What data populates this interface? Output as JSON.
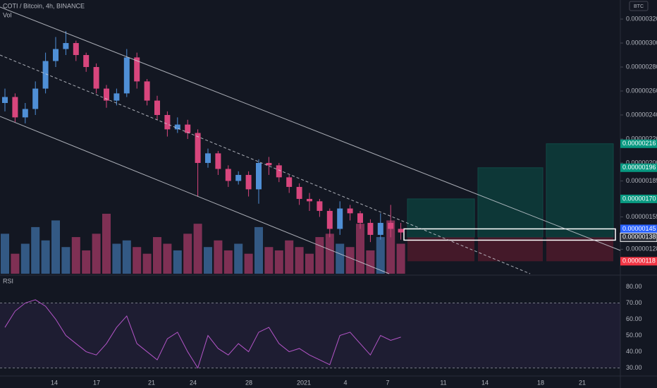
{
  "header": {
    "symbol": "COTI / Bitcoin, 4h, BINANCE",
    "volume_label": "Vol",
    "currency": "BTC",
    "rsi_label": "RSI"
  },
  "chart_data": {
    "type": "candlestick",
    "open": [
      2.5e-06,
      2.55e-06,
      2.38e-06,
      2.45e-06,
      2.62e-06,
      2.85e-06,
      2.95e-06,
      3e-06,
      2.9e-06,
      2.8e-06,
      2.62e-06,
      2.52e-06,
      2.58e-06,
      2.88e-06,
      2.68e-06,
      2.52e-06,
      2.4e-06,
      2.28e-06,
      2.32e-06,
      2.25e-06,
      2e-06,
      2.08e-06,
      1.95e-06,
      1.85e-06,
      1.9e-06,
      1.78e-06,
      2e-06,
      1.98e-06,
      1.88e-06,
      1.8e-06,
      1.7e-06,
      1.68e-06,
      1.6e-06,
      1.45e-06,
      1.62e-06,
      1.58e-06,
      1.5e-06,
      1.4e-06,
      1.5e-06,
      1.45e-06
    ],
    "high": [
      2.62e-06,
      2.58e-06,
      2.5e-06,
      2.68e-06,
      2.92e-06,
      3.05e-06,
      3.1e-06,
      3.02e-06,
      2.92e-06,
      2.83e-06,
      2.65e-06,
      2.62e-06,
      2.95e-06,
      2.92e-06,
      2.7e-06,
      2.56e-06,
      2.43e-06,
      2.38e-06,
      2.36e-06,
      2.28e-06,
      2.12e-06,
      2.1e-06,
      1.98e-06,
      1.93e-06,
      1.93e-06,
      2.03e-06,
      2.05e-06,
      2e-06,
      1.9e-06,
      1.83e-06,
      1.75e-06,
      1.7e-06,
      1.62e-06,
      1.68e-06,
      1.65e-06,
      1.6e-06,
      1.53e-06,
      1.58e-06,
      1.65e-06,
      1.5e-06
    ],
    "low": [
      2.43e-06,
      2.34e-06,
      2.33e-06,
      2.4e-06,
      2.58e-06,
      2.8e-06,
      2.9e-06,
      2.85e-06,
      2.76e-06,
      2.58e-06,
      2.46e-06,
      2.48e-06,
      2.55e-06,
      2.62e-06,
      2.48e-06,
      2.36e-06,
      2.22e-06,
      2.25e-06,
      2.2e-06,
      1.72e-06,
      1.96e-06,
      1.9e-06,
      1.8e-06,
      1.82e-06,
      1.72e-06,
      1.66e-06,
      1.9e-06,
      1.84e-06,
      1.75e-06,
      1.65e-06,
      1.6e-06,
      1.55e-06,
      1.38e-06,
      1.4e-06,
      1.52e-06,
      1.45e-06,
      1.34e-06,
      1.36e-06,
      1.38e-06,
      1.36e-06
    ],
    "close": [
      2.55e-06,
      2.38e-06,
      2.45e-06,
      2.62e-06,
      2.85e-06,
      2.95e-06,
      3e-06,
      2.9e-06,
      2.8e-06,
      2.62e-06,
      2.52e-06,
      2.58e-06,
      2.88e-06,
      2.68e-06,
      2.52e-06,
      2.4e-06,
      2.28e-06,
      2.32e-06,
      2.25e-06,
      2e-06,
      2.08e-06,
      1.95e-06,
      1.85e-06,
      1.9e-06,
      1.78e-06,
      2e-06,
      1.98e-06,
      1.88e-06,
      1.8e-06,
      1.7e-06,
      1.68e-06,
      1.6e-06,
      1.45e-06,
      1.62e-06,
      1.58e-06,
      1.5e-06,
      1.4e-06,
      1.5e-06,
      1.45e-06,
      1.42e-06
    ],
    "volume": [
      60,
      30,
      45,
      70,
      50,
      80,
      40,
      55,
      35,
      60,
      90,
      45,
      50,
      40,
      30,
      55,
      45,
      35,
      60,
      75,
      40,
      50,
      35,
      45,
      30,
      70,
      40,
      35,
      50,
      40,
      30,
      55,
      60,
      45,
      40,
      75,
      35,
      55,
      80,
      45
    ],
    "rsi": [
      55,
      65,
      70,
      72,
      68,
      60,
      50,
      45,
      40,
      38,
      45,
      55,
      62,
      45,
      40,
      35,
      48,
      52,
      40,
      30,
      50,
      42,
      38,
      45,
      40,
      52,
      55,
      45,
      40,
      42,
      38,
      35,
      32,
      50,
      52,
      45,
      38,
      50,
      47,
      49
    ],
    "up_color": "#4f8fd6",
    "down_color": "#d8467d",
    "ylim": [
      1.076e-06,
      3.359e-06
    ],
    "yticks": [
      {
        "value": 3.2e-06,
        "label": "0.00000320"
      },
      {
        "value": 3e-06,
        "label": "0.00000300"
      },
      {
        "value": 2.8e-06,
        "label": "0.00000280"
      },
      {
        "value": 2.6e-06,
        "label": "0.00000260"
      },
      {
        "value": 2.4e-06,
        "label": "0.00000240"
      },
      {
        "value": 2.2e-06,
        "label": "0.00000220"
      },
      {
        "value": 2e-06,
        "label": "0.00000200"
      },
      {
        "value": 1.85e-06,
        "label": "0.00000185"
      },
      {
        "value": 1.55e-06,
        "label": "0.00000155"
      },
      {
        "value": 1.28e-06,
        "label": "0.00000128"
      }
    ],
    "targets": [
      {
        "value": 1.7e-06,
        "label": "0.00000170"
      },
      {
        "value": 1.96e-06,
        "label": "0.00000196"
      },
      {
        "value": 2.16e-06,
        "label": "0.00000216"
      }
    ],
    "box_top": {
      "value": 1.45e-06,
      "label": "0.00000145"
    },
    "entry": {
      "value": 1.38e-06,
      "label": "0.00000138"
    },
    "stop": {
      "value": 1.18e-06,
      "label": "0.00000118"
    },
    "rsi_ylim": [
      22,
      85
    ],
    "rsi_yticks": [
      {
        "value": 80,
        "label": "80.00"
      },
      {
        "value": 70,
        "label": "70.00"
      },
      {
        "value": 60,
        "label": "60.00"
      },
      {
        "value": 50,
        "label": "50.00"
      },
      {
        "value": 40,
        "label": "40.00"
      },
      {
        "value": 30,
        "label": "30.00"
      }
    ],
    "time_labels": [
      "14",
      "17",
      "21",
      "24",
      "28",
      "2021",
      "4",
      "7",
      "11",
      "14",
      "18",
      "21"
    ]
  }
}
